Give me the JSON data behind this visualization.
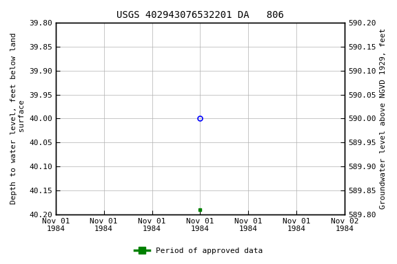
{
  "title": "USGS 402943076532201 DA   806",
  "left_ylabel": "Depth to water level, feet below land\n surface",
  "right_ylabel": "Groundwater level above NGVD 1929, feet",
  "ylim_left_top": 39.8,
  "ylim_left_bottom": 40.2,
  "ylim_right_top": 590.2,
  "ylim_right_bottom": 589.8,
  "xlim": [
    0,
    6
  ],
  "xtick_positions": [
    0,
    1,
    2,
    3,
    4,
    5,
    6
  ],
  "xtick_labels": [
    "Nov 01\n1984",
    "Nov 01\n1984",
    "Nov 01\n1984",
    "Nov 01\n1984",
    "Nov 01\n1984",
    "Nov 01\n1984",
    "Nov 02\n1984"
  ],
  "yticks_left": [
    39.8,
    39.85,
    39.9,
    39.95,
    40.0,
    40.05,
    40.1,
    40.15,
    40.2
  ],
  "yticks_right": [
    590.2,
    590.15,
    590.1,
    590.05,
    590.0,
    589.95,
    589.9,
    589.85,
    589.8
  ],
  "yticks_right_labels": [
    "590.20",
    "590.15",
    "590.10",
    "590.05",
    "590.00",
    "589.95",
    "589.90",
    "589.85",
    "589.80"
  ],
  "data_blue_x": 3.0,
  "data_blue_y": 40.0,
  "data_green_x": 3.0,
  "data_green_y": 40.19,
  "legend_label": "Period of approved data",
  "bg_color": "#ffffff",
  "grid_color": "#b0b0b0",
  "title_fontsize": 10,
  "axis_label_fontsize": 8,
  "tick_fontsize": 8
}
